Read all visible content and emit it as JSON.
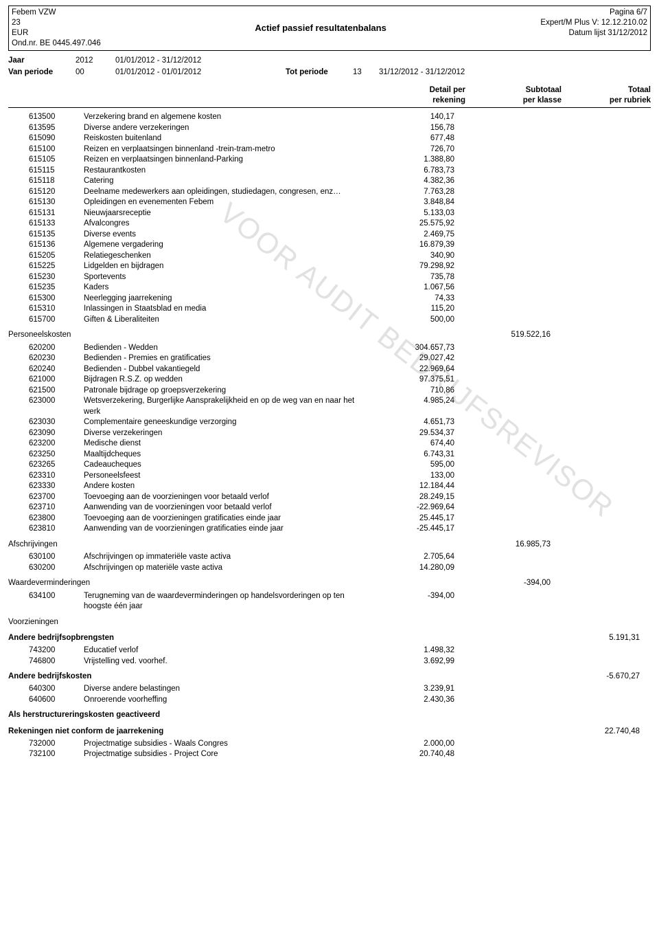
{
  "header": {
    "org": "Febem VZW",
    "num": "23",
    "currency": "EUR",
    "ondnr": "Ond.nr. BE 0445.497.046",
    "title": "Actief passief resultatenbalans",
    "page": "Pagina 6/7",
    "version": "Expert/M Plus V: 12.12.210.02",
    "date": "Datum lijst 31/12/2012"
  },
  "period": {
    "jaar_lbl": "Jaar",
    "jaar_val": "2012",
    "jaar_range": "01/01/2012 - 31/12/2012",
    "van_lbl": "Van periode",
    "van_val": "00",
    "van_range": "01/01/2012 - 01/01/2012",
    "tot_lbl": "Tot periode",
    "tot_val": "13",
    "tot_range": "31/12/2012 - 31/12/2012"
  },
  "col_headers": {
    "detail1": "Detail per",
    "detail2": "rekening",
    "sub1": "Subtotaal",
    "sub2": "per klasse",
    "tot1": "Totaal",
    "tot2": "per rubriek"
  },
  "group1": [
    {
      "code": "613500",
      "label": "Verzekering brand en algemene kosten",
      "detail": "140,17"
    },
    {
      "code": "613595",
      "label": "Diverse andere verzekeringen",
      "detail": "156,78"
    },
    {
      "code": "615090",
      "label": "Reiskosten buitenland",
      "detail": "677,48"
    },
    {
      "code": "615100",
      "label": "Reizen en verplaatsingen binnenland -trein-tram-metro",
      "detail": "726,70"
    },
    {
      "code": "615105",
      "label": "Reizen en verplaatsingen binnenland-Parking",
      "detail": "1.388,80"
    },
    {
      "code": "615115",
      "label": "Restaurantkosten",
      "detail": "6.783,73"
    },
    {
      "code": "615118",
      "label": "Catering",
      "detail": "4.382,36"
    },
    {
      "code": "615120",
      "label": "Deelname medewerkers aan opleidingen, studiedagen, congresen, enz…",
      "detail": "7.763,28"
    },
    {
      "code": "615130",
      "label": "Opleidingen en evenementen Febem",
      "detail": "3.848,84"
    },
    {
      "code": "615131",
      "label": "Nieuwjaarsreceptie",
      "detail": "5.133,03"
    },
    {
      "code": "615133",
      "label": "Afvalcongres",
      "detail": "25.575,92"
    },
    {
      "code": "615135",
      "label": "Diverse events",
      "detail": "2.469,75"
    },
    {
      "code": "615136",
      "label": "Algemene vergadering",
      "detail": "16.879,39"
    },
    {
      "code": "615205",
      "label": "Relatiegeschenken",
      "detail": "340,90"
    },
    {
      "code": "615225",
      "label": "Lidgelden en bijdragen",
      "detail": "79.298,92"
    },
    {
      "code": "615230",
      "label": "Sportevents",
      "detail": "735,78"
    },
    {
      "code": "615235",
      "label": "Kaders",
      "detail": "1.067,56"
    },
    {
      "code": "615300",
      "label": "Neerlegging jaarrekening",
      "detail": "74,33"
    },
    {
      "code": "615310",
      "label": "Inlassingen in Staatsblad en media",
      "detail": "115,20"
    },
    {
      "code": "615700",
      "label": "Giften & Liberaliteiten",
      "detail": "500,00"
    }
  ],
  "section_personeel": {
    "label": "Personeelskosten",
    "sub": "519.522,16"
  },
  "group2": [
    {
      "code": "620200",
      "label": "Bedienden - Wedden",
      "detail": "304.657,73"
    },
    {
      "code": "620230",
      "label": "Bedienden - Premies en gratificaties",
      "detail": "29.027,42"
    },
    {
      "code": "620240",
      "label": "Bedienden - Dubbel vakantiegeld",
      "detail": "22.969,64"
    },
    {
      "code": "621000",
      "label": "Bijdragen R.S.Z. op wedden",
      "detail": "97.375,51"
    },
    {
      "code": "621500",
      "label": "Patronale bijdrage op groepsverzekering",
      "detail": "710,86"
    },
    {
      "code": "623000",
      "label": "Wetsverzekering, Burgerlijke Aansprakelijkheid en op de weg van en naar het werk",
      "detail": "4.985,24"
    },
    {
      "code": "623030",
      "label": "Complementaire geneeskundige verzorging",
      "detail": "4.651,73"
    },
    {
      "code": "623090",
      "label": "Diverse verzekeringen",
      "detail": "29.534,37"
    },
    {
      "code": "623200",
      "label": "Medische dienst",
      "detail": "674,40"
    },
    {
      "code": "623250",
      "label": "Maaltijdcheques",
      "detail": "6.743,31"
    },
    {
      "code": "623265",
      "label": "Cadeaucheques",
      "detail": "595,00"
    },
    {
      "code": "623310",
      "label": "Personeelsfeest",
      "detail": "133,00"
    },
    {
      "code": "623330",
      "label": "Andere kosten",
      "detail": "12.184,44"
    },
    {
      "code": "623700",
      "label": "Toevoeging aan de voorzieningen voor betaald verlof",
      "detail": "28.249,15"
    },
    {
      "code": "623710",
      "label": "Aanwending van de voorzieningen voor betaald verlof",
      "detail": "-22.969,64"
    },
    {
      "code": "623800",
      "label": "Toevoeging aan de voorzieningen gratificaties einde jaar",
      "detail": "25.445,17"
    },
    {
      "code": "623810",
      "label": "Aanwending van de voorzieningen gratificaties einde jaar",
      "detail": "-25.445,17"
    }
  ],
  "section_afschr": {
    "label": "Afschrijvingen",
    "sub": "16.985,73"
  },
  "group3": [
    {
      "code": "630100",
      "label": "Afschrijvingen op immateriële vaste activa",
      "detail": "2.705,64"
    },
    {
      "code": "630200",
      "label": "Afschrijvingen op materiële vaste activa",
      "detail": "14.280,09"
    }
  ],
  "section_waarde": {
    "label": "Waardeverminderingen",
    "sub": "-394,00"
  },
  "group4": [
    {
      "code": "634100",
      "label": "Terugneming van de waardeverminderingen op handelsvorderingen op ten hoogste één jaar",
      "detail": "-394,00"
    }
  ],
  "section_voorz": {
    "label": "Voorzieningen"
  },
  "section_andere_opb": {
    "label": "Andere bedrijfsopbrengsten",
    "tot": "5.191,31",
    "bold": true
  },
  "group5": [
    {
      "code": "743200",
      "label": "Educatief verlof",
      "detail": "1.498,32"
    },
    {
      "code": "746800",
      "label": "Vrijstelling ved. voorhef.",
      "detail": "3.692,99"
    }
  ],
  "section_andere_kost": {
    "label": "Andere bedrijfskosten",
    "tot": "-5.670,27",
    "bold": true
  },
  "group6": [
    {
      "code": "640300",
      "label": "Diverse andere belastingen",
      "detail": "3.239,91"
    },
    {
      "code": "640600",
      "label": "Onroerende voorheffing",
      "detail": "2.430,36"
    }
  ],
  "section_herstr": {
    "label": "Als herstructureringskosten geactiveerd",
    "bold": true
  },
  "section_rek_niet": {
    "label": "Rekeningen niet conform de jaarrekening",
    "tot": "22.740,48",
    "bold": true
  },
  "group7": [
    {
      "code": "732000",
      "label": "Projectmatige subsidies - Waals Congres",
      "detail": "2.000,00"
    },
    {
      "code": "732100",
      "label": "Projectmatige subsidies - Project Core",
      "detail": "20.740,48"
    }
  ],
  "watermark": "VOOR AUDIT BEDRIJFSREVISOR"
}
